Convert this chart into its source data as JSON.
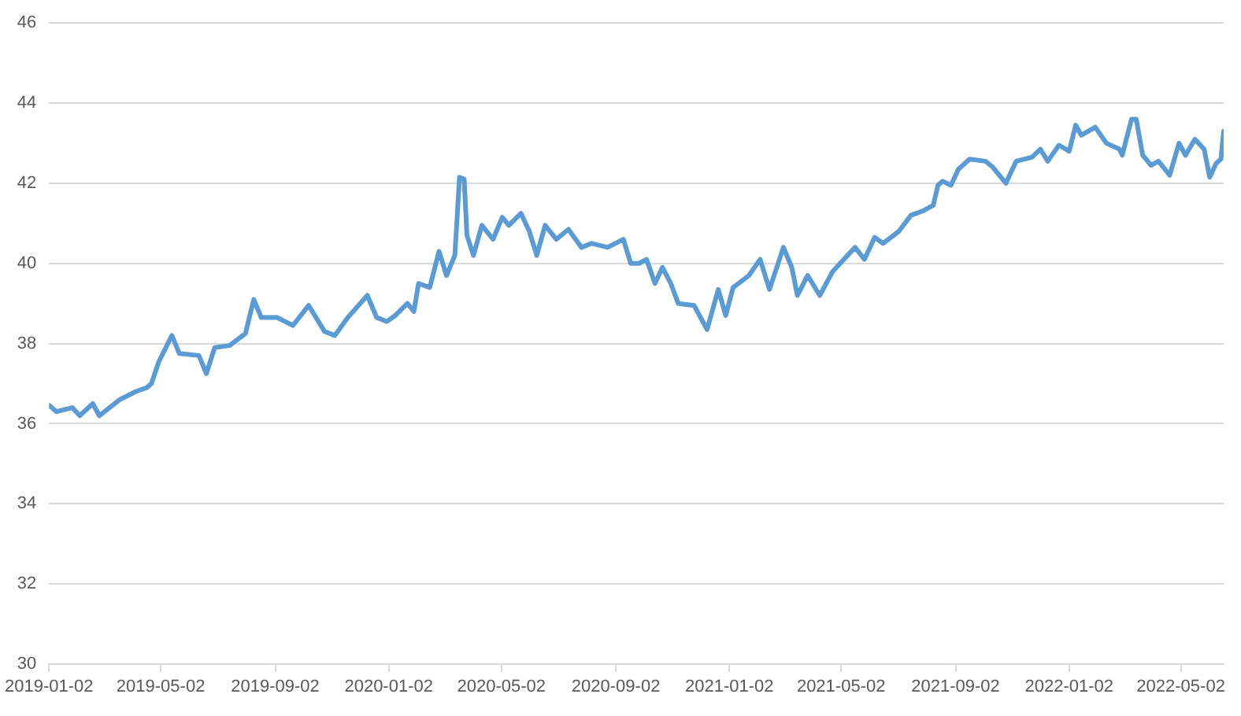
{
  "chart_data": {
    "type": "line",
    "x": [
      "2019-01-02",
      "2019-01-10",
      "2019-01-27",
      "2019-02-04",
      "2019-02-18",
      "2019-02-25",
      "2019-03-19",
      "2019-04-05",
      "2019-04-17",
      "2019-04-22",
      "2019-04-30",
      "2019-05-14",
      "2019-05-22",
      "2019-06-12",
      "2019-06-20",
      "2019-06-29",
      "2019-07-15",
      "2019-08-01",
      "2019-08-10",
      "2019-08-18",
      "2019-09-04",
      "2019-09-21",
      "2019-10-08",
      "2019-10-25",
      "2019-11-05",
      "2019-11-19",
      "2019-12-10",
      "2019-12-20",
      "2019-12-31",
      "2020-01-09",
      "2020-01-22",
      "2020-01-29",
      "2020-02-03",
      "2020-02-15",
      "2020-02-25",
      "2020-03-04",
      "2020-03-13",
      "2020-03-18",
      "2020-03-23",
      "2020-03-26",
      "2020-04-02",
      "2020-04-11",
      "2020-04-23",
      "2020-05-03",
      "2020-05-10",
      "2020-05-23",
      "2020-06-01",
      "2020-06-09",
      "2020-06-18",
      "2020-06-30",
      "2020-07-13",
      "2020-07-27",
      "2020-08-07",
      "2020-08-24",
      "2020-09-10",
      "2020-09-18",
      "2020-09-27",
      "2020-10-05",
      "2020-10-14",
      "2020-10-22",
      "2020-10-31",
      "2020-11-08",
      "2020-11-25",
      "2020-12-09",
      "2020-12-21",
      "2020-12-29",
      "2021-01-06",
      "2021-01-23",
      "2021-02-04",
      "2021-02-14",
      "2021-03-01",
      "2021-03-10",
      "2021-03-16",
      "2021-03-27",
      "2021-04-09",
      "2021-04-23",
      "2021-05-05",
      "2021-05-17",
      "2021-05-27",
      "2021-06-07",
      "2021-06-16",
      "2021-07-03",
      "2021-07-16",
      "2021-07-28",
      "2021-08-09",
      "2021-08-14",
      "2021-08-19",
      "2021-08-28",
      "2021-09-05",
      "2021-09-17",
      "2021-10-04",
      "2021-10-12",
      "2021-10-26",
      "2021-11-06",
      "2021-11-23",
      "2021-12-02",
      "2021-12-10",
      "2021-12-22",
      "2022-01-02",
      "2022-01-09",
      "2022-01-15",
      "2022-01-30",
      "2022-02-11",
      "2022-02-25",
      "2022-02-28",
      "2022-03-10",
      "2022-03-15",
      "2022-03-22",
      "2022-03-31",
      "2022-04-08",
      "2022-04-20",
      "2022-04-30",
      "2022-05-07",
      "2022-05-17",
      "2022-05-27",
      "2022-06-02",
      "2022-06-09",
      "2022-06-14",
      "2022-06-17"
    ],
    "series": [
      {
        "color": "#5b9bd5",
        "values": [
          36.46,
          36.3,
          36.4,
          36.2,
          36.5,
          36.2,
          36.6,
          36.8,
          36.9,
          37.0,
          37.55,
          38.2,
          37.75,
          37.7,
          37.25,
          37.9,
          37.95,
          38.25,
          39.1,
          38.65,
          38.65,
          38.45,
          38.95,
          38.3,
          38.2,
          38.65,
          39.2,
          38.65,
          38.55,
          38.7,
          39.0,
          38.8,
          39.5,
          39.4,
          40.3,
          39.7,
          40.2,
          42.15,
          42.1,
          40.7,
          40.2,
          40.95,
          40.6,
          41.15,
          40.95,
          41.25,
          40.8,
          40.2,
          40.95,
          40.6,
          40.85,
          40.4,
          40.5,
          40.4,
          40.6,
          40.0,
          40.0,
          40.1,
          39.5,
          39.9,
          39.5,
          39.0,
          38.95,
          38.35,
          39.35,
          38.7,
          39.4,
          39.7,
          40.1,
          39.35,
          40.4,
          39.9,
          39.2,
          39.7,
          39.2,
          39.8,
          40.1,
          40.4,
          40.1,
          40.65,
          40.5,
          40.8,
          41.2,
          41.3,
          41.45,
          41.95,
          42.05,
          41.95,
          42.35,
          42.6,
          42.55,
          42.4,
          42.0,
          42.55,
          42.65,
          42.85,
          42.55,
          42.95,
          42.8,
          43.45,
          43.2,
          43.4,
          43.0,
          42.85,
          42.7,
          43.6,
          43.6,
          42.7,
          42.45,
          42.55,
          42.2,
          43.0,
          42.7,
          43.1,
          42.85,
          42.15,
          42.5,
          42.6,
          43.3
        ]
      }
    ],
    "xlim": [
      "2019-01-02",
      "2022-06-17"
    ],
    "xticks": [
      "2019-01-02",
      "2019-05-02",
      "2019-09-02",
      "2020-01-02",
      "2020-05-02",
      "2020-09-02",
      "2021-01-02",
      "2021-05-02",
      "2021-09-02",
      "2022-01-02",
      "2022-05-02"
    ],
    "ylim": [
      30,
      46
    ],
    "yticks": [
      30,
      32,
      34,
      36,
      38,
      40,
      42,
      44,
      46
    ],
    "grid": "y",
    "legend": false,
    "marker": "none",
    "line_style": "solid"
  }
}
